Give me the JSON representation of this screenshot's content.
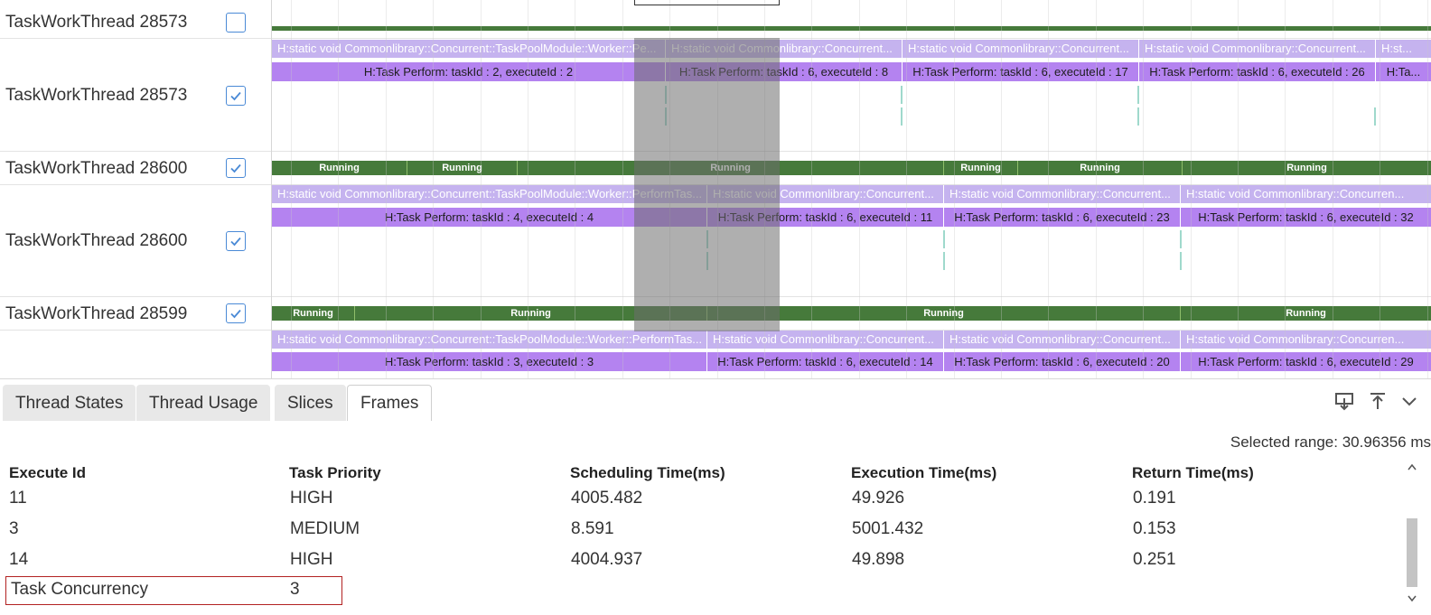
{
  "timeline": {
    "row_top_partial_label": "TaskWorkThread 28573",
    "rows": [
      {
        "label": "TaskWorkThread 28573"
      },
      {
        "label": "TaskWorkThread 28600"
      },
      {
        "label": "TaskWorkThread 28600"
      },
      {
        "label": "TaskWorkThread 28599"
      }
    ],
    "running_label": "Running",
    "row1_static": [
      "H:static void Commonlibrary::Concurrent::TaskPoolModule::Worker::Pe...",
      "H:static void Commonlibrary::Concurrent...",
      "H:static void Commonlibrary::Concurrent...",
      "H:static void Commonlibrary::Concurrent...",
      "H:st..."
    ],
    "row1_tasks": [
      "H:Task Perform: taskId : 2, executeId : 2",
      "H:Task Perform: taskId : 6, executeId : 8",
      "H:Task Perform: taskId : 6, executeId : 17",
      "H:Task Perform: taskId : 6, executeId : 26",
      "H:Ta..."
    ],
    "row3_static": [
      "H:static void Commonlibrary::Concurrent::TaskPoolModule::Worker::PerformTas...",
      "H:static void Commonlibrary::Concurrent...",
      "H:static void Commonlibrary::Concurrent...",
      "H:static void Commonlibrary::Concurren..."
    ],
    "row3_tasks": [
      "H:Task Perform: taskId : 4, executeId : 4",
      "H:Task Perform: taskId : 6, executeId : 11",
      "H:Task Perform: taskId : 6, executeId : 23",
      "H:Task Perform: taskId : 6, executeId : 32"
    ],
    "row5_static": [
      "H:static void Commonlibrary::Concurrent::TaskPoolModule::Worker::PerformTas...",
      "H:static void Commonlibrary::Concurrent...",
      "H:static void Commonlibrary::Concurrent...",
      "H:static void Commonlibrary::Concurren..."
    ],
    "row5_tasks": [
      "H:Task Perform: taskId : 3, executeId : 3",
      "H:Task Perform: taskId : 6, executeId : 14",
      "H:Task Perform: taskId : 6, executeId : 20",
      "H:Task Perform: taskId : 6, executeId : 29"
    ]
  },
  "tabs": [
    "Thread States",
    "Thread Usage",
    "Slices",
    "Frames"
  ],
  "active_tab": "Frames",
  "panel": {
    "selected_range": "Selected range: 30.96356 ms",
    "columns": [
      "Execute Id",
      "Task Priority",
      "Scheduling Time(ms)",
      "Execution Time(ms)",
      "Return Time(ms)"
    ],
    "rows": [
      [
        "11",
        "HIGH",
        "4005.482",
        "49.926",
        "0.191"
      ],
      [
        "3",
        "MEDIUM",
        "8.591",
        "5001.432",
        "0.153"
      ],
      [
        "14",
        "HIGH",
        "4004.937",
        "49.898",
        "0.251"
      ]
    ],
    "concurrency_label": "Task Concurrency",
    "concurrency_value": "3"
  },
  "colors": {
    "running": "#467a3b",
    "static_slice": "#c5b3ef",
    "task_slice": "#b483f0",
    "selection_overlay": "#6e6e6e",
    "checkbox": "#4a8ad6",
    "highlight_box": "#b22222"
  },
  "icons": [
    "download-icon",
    "upload-icon",
    "chevron-down-icon",
    "checkbox-checked-icon"
  ]
}
